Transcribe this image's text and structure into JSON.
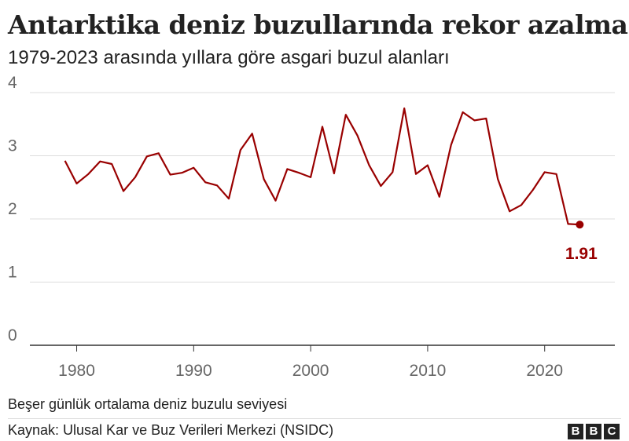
{
  "title": "Antarktika deniz buzullarında rekor azalma",
  "subtitle": "1979-2023 arasında yıllara göre asgari buzul alanları",
  "note": "Beşer günlük ortalama deniz buzulu seviyesi",
  "source": "Kaynak: Ulusal Kar ve Buz Verileri Merkezi (NSIDC)",
  "logo": [
    "B",
    "B",
    "C"
  ],
  "colors": {
    "line": "#990000",
    "grid": "#dddddd",
    "axis": "#333333",
    "tick": "#666666"
  },
  "chart_data": {
    "type": "line",
    "title": "Antarktika deniz buzullarında rekor azalma",
    "subtitle": "1979-2023 arasında yıllara göre asgari buzul alanları",
    "xlabel": "",
    "ylabel": "",
    "xlim": [
      1976,
      2026
    ],
    "ylim": [
      0,
      4
    ],
    "x_ticks": [
      1980,
      1990,
      2000,
      2010,
      2020
    ],
    "y_ticks": [
      0,
      1,
      2,
      3,
      4
    ],
    "grid": true,
    "legend": "none",
    "annotation": {
      "x": 2023,
      "y": 1.91,
      "text": "1.91"
    },
    "series": [
      {
        "x": [
          1979,
          1980,
          1981,
          1982,
          1983,
          1984,
          1985,
          1986,
          1987,
          1988,
          1989,
          1990,
          1991,
          1992,
          1993,
          1994,
          1995,
          1996,
          1997,
          1998,
          1999,
          2000,
          2001,
          2002,
          2003,
          2004,
          2005,
          2006,
          2007,
          2008,
          2009,
          2010,
          2011,
          2012,
          2013,
          2014,
          2015,
          2016,
          2017,
          2018,
          2019,
          2020,
          2021,
          2022,
          2023
        ],
        "values": [
          2.92,
          2.56,
          2.71,
          2.91,
          2.87,
          2.44,
          2.66,
          2.99,
          3.04,
          2.7,
          2.73,
          2.81,
          2.58,
          2.53,
          2.32,
          3.09,
          3.35,
          2.63,
          2.29,
          2.79,
          2.73,
          2.66,
          3.46,
          2.72,
          3.65,
          3.32,
          2.85,
          2.52,
          2.74,
          3.75,
          2.71,
          2.85,
          2.35,
          3.17,
          3.69,
          3.56,
          3.59,
          2.63,
          2.12,
          2.22,
          2.46,
          2.74,
          2.71,
          1.92,
          1.91
        ]
      }
    ]
  }
}
